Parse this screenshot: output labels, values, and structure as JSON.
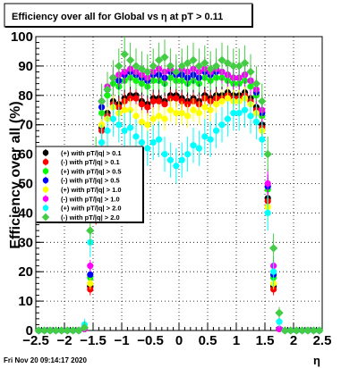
{
  "chart_data": {
    "type": "scatter",
    "title": "Efficiency over all for Global vs   η at pT > 0.11",
    "xlabel": "η",
    "ylabel": "Efficiency over all (%)",
    "xlim": [
      -2.5,
      2.5
    ],
    "ylim": [
      0,
      100
    ],
    "x_ticks": [
      -2.5,
      -2,
      -1.5,
      -1,
      -0.5,
      0,
      0.5,
      1,
      1.5,
      2,
      2.5
    ],
    "x_tick_labels": [
      "−2.5",
      "−2",
      "−1.5",
      "−1",
      "−0.5",
      "0",
      "0.5",
      "1",
      "1.5",
      "2",
      "2.5"
    ],
    "y_ticks": [
      0,
      10,
      20,
      30,
      40,
      50,
      60,
      70,
      80,
      90,
      100
    ],
    "y_tick_labels": [
      "0",
      "10",
      "20",
      "30",
      "40",
      "50",
      "60",
      "70",
      "80",
      "90",
      "100"
    ],
    "grid": true,
    "legend_position": "left",
    "footer": "Fri Nov 20 09:14:17 2020",
    "x_bins": [
      -2.45,
      -2.35,
      -2.25,
      -2.15,
      -2.05,
      -1.95,
      -1.85,
      -1.75,
      -1.65,
      -1.55,
      -1.45,
      -1.35,
      -1.25,
      -1.15,
      -1.05,
      -0.95,
      -0.85,
      -0.75,
      -0.65,
      -0.55,
      -0.45,
      -0.35,
      -0.25,
      -0.15,
      -0.05,
      0.05,
      0.15,
      0.25,
      0.35,
      0.45,
      0.55,
      0.65,
      0.75,
      0.85,
      0.95,
      1.05,
      1.15,
      1.25,
      1.35,
      1.45,
      1.55,
      1.65,
      1.75,
      1.85,
      1.95,
      2.05,
      2.15,
      2.25,
      2.35,
      2.45
    ],
    "series": [
      {
        "name": "(+) with pT/|q| > 0.1",
        "color": "#000000",
        "marker": "circle",
        "values": [
          0,
          0,
          0,
          0,
          0,
          0,
          0,
          0,
          0.5,
          15,
          42,
          69,
          74,
          78,
          77,
          79,
          80,
          80,
          78,
          77,
          79,
          79,
          78,
          80,
          80,
          79,
          78,
          79,
          78,
          80,
          79,
          80,
          80,
          81,
          80,
          80,
          81,
          79,
          76,
          70,
          45,
          15,
          0.5,
          0,
          0,
          0,
          0,
          0,
          0,
          0
        ],
        "errors": [
          0,
          0,
          0,
          0,
          0,
          0,
          0,
          0,
          1,
          2,
          4,
          4,
          4,
          3,
          3,
          3,
          3,
          3,
          3,
          3,
          3,
          3,
          3,
          3,
          3,
          3,
          3,
          3,
          3,
          3,
          3,
          3,
          3,
          3,
          3,
          3,
          3,
          4,
          4,
          4,
          4,
          2,
          1,
          0,
          0,
          0,
          0,
          0,
          0,
          0
        ]
      },
      {
        "name": "(-) with pT/|q| > 0.1",
        "color": "#ff0000",
        "marker": "circle",
        "values": [
          0,
          0,
          0,
          0,
          0,
          0,
          0,
          0,
          0.5,
          14,
          40,
          68,
          73,
          77,
          76,
          78,
          79,
          79,
          77,
          76,
          78,
          78,
          77,
          79,
          79,
          78,
          77,
          78,
          77,
          79,
          78,
          79,
          79,
          80,
          79,
          79,
          80,
          78,
          75,
          69,
          44,
          14,
          0.5,
          0,
          0,
          0,
          0,
          0,
          0,
          0
        ],
        "errors": [
          0,
          0,
          0,
          0,
          0,
          0,
          0,
          0,
          1,
          2,
          4,
          4,
          4,
          3,
          3,
          3,
          3,
          3,
          3,
          3,
          3,
          3,
          3,
          3,
          3,
          3,
          3,
          3,
          3,
          3,
          3,
          3,
          3,
          3,
          3,
          3,
          3,
          4,
          4,
          4,
          4,
          2,
          1,
          0,
          0,
          0,
          0,
          0,
          0,
          0
        ]
      },
      {
        "name": "(+) with pT/|q| > 0.5",
        "color": "#00ff00",
        "marker": "circle",
        "values": [
          0,
          0,
          0,
          0,
          0,
          0,
          0,
          0,
          0.5,
          18,
          45,
          74,
          80,
          84,
          83,
          85,
          86,
          85,
          84,
          83,
          85,
          85,
          84,
          86,
          85,
          85,
          84,
          85,
          84,
          86,
          85,
          86,
          86,
          85,
          84,
          84,
          85,
          83,
          80,
          73,
          48,
          18,
          0.5,
          0,
          0,
          0,
          0,
          0,
          0,
          0
        ],
        "errors": [
          0,
          0,
          0,
          0,
          0,
          0,
          0,
          0,
          1,
          2,
          4,
          4,
          3,
          3,
          3,
          3,
          3,
          3,
          3,
          3,
          3,
          3,
          3,
          3,
          3,
          3,
          3,
          3,
          3,
          3,
          3,
          3,
          3,
          3,
          3,
          3,
          3,
          4,
          4,
          4,
          4,
          2,
          1,
          0,
          0,
          0,
          0,
          0,
          0,
          0
        ]
      },
      {
        "name": "(-) with pT/|q| > 0.5",
        "color": "#0000ff",
        "marker": "circle",
        "values": [
          0,
          0,
          0,
          0,
          0,
          0,
          0,
          0,
          0.5,
          19,
          46,
          76,
          82,
          86,
          85,
          87,
          88,
          87,
          86,
          85,
          87,
          87,
          86,
          88,
          87,
          87,
          86,
          87,
          86,
          88,
          87,
          88,
          88,
          87,
          86,
          86,
          87,
          85,
          81,
          74,
          49,
          19,
          0.5,
          0,
          0,
          0,
          0,
          0,
          0,
          0
        ],
        "errors": [
          0,
          0,
          0,
          0,
          0,
          0,
          0,
          0,
          1,
          2,
          4,
          4,
          3,
          3,
          3,
          3,
          3,
          3,
          3,
          3,
          3,
          3,
          3,
          3,
          3,
          3,
          3,
          3,
          3,
          3,
          3,
          3,
          3,
          3,
          3,
          3,
          3,
          4,
          4,
          4,
          4,
          2,
          1,
          0,
          0,
          0,
          0,
          0,
          0,
          0
        ]
      },
      {
        "name": "(+) with pT/|q| > 1.0",
        "color": "#ffff00",
        "marker": "circle",
        "values": [
          0,
          0,
          0,
          0,
          0,
          0,
          0,
          0,
          0.5,
          16,
          43,
          70,
          72,
          76,
          74,
          75,
          75,
          73,
          71,
          70,
          72,
          73,
          72,
          75,
          74,
          74,
          73,
          75,
          74,
          76,
          75,
          77,
          78,
          79,
          78,
          78,
          79,
          77,
          74,
          68,
          42,
          16,
          0.5,
          0,
          0,
          0,
          0,
          0,
          0,
          0
        ],
        "errors": [
          0,
          0,
          0,
          0,
          0,
          0,
          0,
          0,
          1,
          2,
          5,
          5,
          4,
          4,
          4,
          4,
          4,
          4,
          4,
          4,
          4,
          4,
          4,
          4,
          4,
          4,
          4,
          4,
          4,
          4,
          4,
          4,
          4,
          4,
          4,
          4,
          4,
          5,
          5,
          5,
          5,
          2,
          1,
          0,
          0,
          0,
          0,
          0,
          0,
          0
        ]
      },
      {
        "name": "(-) with pT/|q| > 1.0",
        "color": "#ff00ff",
        "marker": "circle",
        "values": [
          0,
          0,
          0,
          0,
          0,
          0,
          0,
          0,
          0.5,
          22,
          50,
          78,
          83,
          86,
          87,
          88,
          89,
          88,
          87,
          86,
          88,
          89,
          88,
          89,
          88,
          89,
          88,
          89,
          88,
          89,
          88,
          89,
          88,
          87,
          86,
          86,
          87,
          85,
          82,
          75,
          50,
          22,
          0.5,
          0,
          0,
          0,
          0,
          0,
          0,
          0
        ],
        "errors": [
          0,
          0,
          0,
          0,
          0,
          0,
          0,
          0,
          1,
          2,
          5,
          5,
          4,
          4,
          4,
          4,
          4,
          4,
          4,
          4,
          4,
          4,
          4,
          4,
          4,
          4,
          4,
          4,
          4,
          4,
          4,
          4,
          4,
          4,
          4,
          4,
          4,
          5,
          5,
          5,
          5,
          2,
          1,
          0,
          0,
          0,
          0,
          0,
          0,
          0
        ]
      },
      {
        "name": "(+) with pT/|q| > 2.0",
        "color": "#00ffff",
        "marker": "circle",
        "values": [
          0,
          0,
          0,
          0,
          0,
          0,
          0,
          0,
          2,
          30,
          55,
          64,
          68,
          72,
          70,
          68,
          69,
          66,
          64,
          62,
          64,
          65,
          60,
          58,
          56,
          58,
          60,
          63,
          62,
          66,
          65,
          68,
          70,
          72,
          74,
          74,
          75,
          73,
          71,
          65,
          40,
          20,
          3,
          0,
          0,
          0,
          0,
          0,
          0,
          0
        ],
        "errors": [
          0,
          0,
          0,
          0,
          0,
          0,
          0,
          0,
          2,
          5,
          6,
          6,
          6,
          6,
          6,
          6,
          6,
          6,
          6,
          6,
          6,
          6,
          6,
          6,
          6,
          6,
          6,
          6,
          6,
          6,
          6,
          6,
          6,
          6,
          6,
          6,
          6,
          6,
          6,
          6,
          6,
          5,
          2,
          0,
          0,
          0,
          0,
          0,
          0,
          0
        ]
      },
      {
        "name": "(-) with pT/|q| > 2.0",
        "color": "#44cc44",
        "marker": "diamond",
        "values": [
          0,
          0,
          0,
          0,
          0,
          0,
          0,
          0,
          1,
          34,
          60,
          78,
          82,
          86,
          90,
          94,
          92,
          90,
          89,
          88,
          90,
          92,
          93,
          90,
          88,
          90,
          91,
          92,
          90,
          91,
          89,
          90,
          92,
          91,
          90,
          90,
          91,
          88,
          84,
          78,
          60,
          28,
          6,
          0,
          0,
          0,
          0,
          0,
          0,
          0
        ],
        "errors": [
          0,
          0,
          0,
          0,
          0,
          0,
          0,
          0,
          2,
          5,
          6,
          6,
          6,
          6,
          6,
          6,
          6,
          6,
          6,
          6,
          6,
          6,
          6,
          6,
          6,
          6,
          6,
          6,
          6,
          6,
          6,
          6,
          6,
          6,
          6,
          6,
          6,
          6,
          6,
          6,
          6,
          5,
          2,
          0,
          0,
          0,
          0,
          0,
          0,
          0
        ]
      }
    ]
  }
}
